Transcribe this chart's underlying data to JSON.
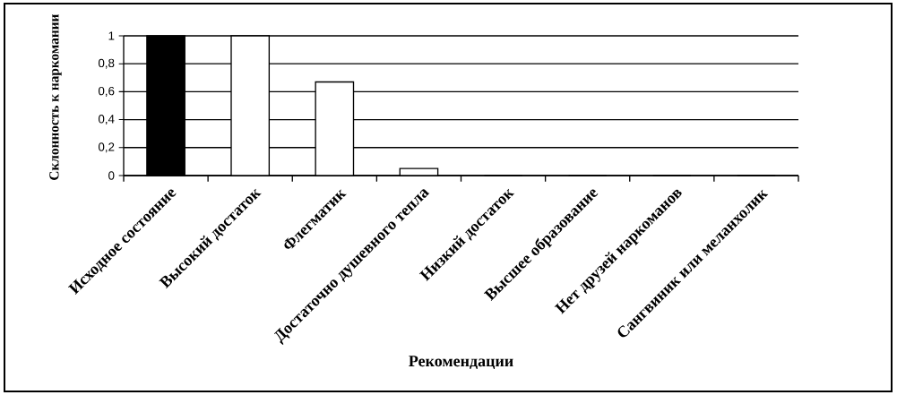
{
  "chart_data": {
    "type": "bar",
    "xlabel": "Рекомендации",
    "ylabel": "Склонность к наркомании",
    "categories": [
      "Исходное состояние",
      "Высокий достаток",
      "Флегматик",
      "Достаточно душевного тепла",
      "Низкий достаток",
      "Высшее образование",
      "Нет друзей наркоманов",
      "Сангвиник или меланхолик"
    ],
    "values": [
      1,
      1,
      0.67,
      0.05,
      0,
      0,
      0,
      0
    ],
    "colors": [
      "#000000",
      "#ffffff",
      "#ffffff",
      "#ffffff",
      "#000000",
      "#000000",
      "#000000",
      "#000000"
    ],
    "ylim": [
      0,
      1
    ],
    "yticks": [
      0,
      {
        "value": 0.2,
        "label": "0,2"
      },
      {
        "value": 0.4,
        "label": "0,4"
      },
      {
        "value": 0.6,
        "label": "0,6"
      },
      {
        "value": 0.8,
        "label": "0,8"
      },
      1
    ],
    "grid": "y"
  }
}
